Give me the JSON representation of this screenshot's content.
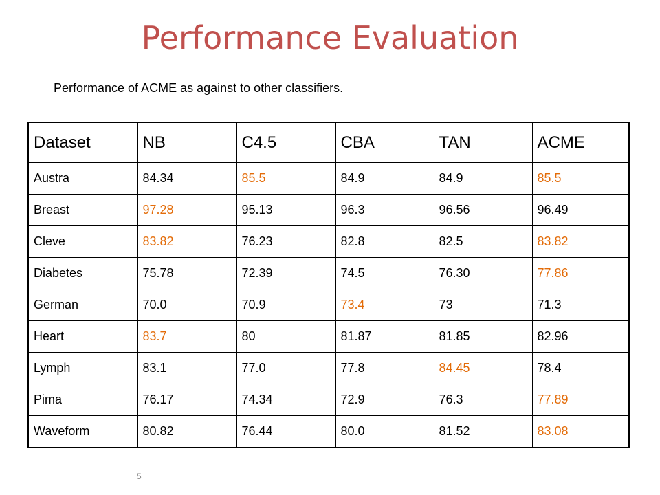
{
  "title": "Performance Evaluation",
  "subtitle": "Performance of ACME as against to other classifiers.",
  "colors": {
    "title": "#c0504d",
    "best_value": "#e36c09",
    "text": "#000000"
  },
  "table": {
    "headers": [
      "Dataset",
      "NB",
      "C4.5",
      "CBA",
      "TAN",
      "ACME"
    ],
    "rows": [
      {
        "cells": [
          "Austra",
          "84.34",
          "85.5",
          "84.9",
          "84.9",
          "85.5"
        ],
        "best": [
          2,
          5
        ]
      },
      {
        "cells": [
          "Breast",
          "97.28",
          "95.13",
          "96.3",
          "96.56",
          "96.49"
        ],
        "best": [
          1
        ]
      },
      {
        "cells": [
          "Cleve",
          "83.82",
          "76.23",
          "82.8",
          "82.5",
          "83.82"
        ],
        "best": [
          1,
          5
        ]
      },
      {
        "cells": [
          "Diabetes",
          "75.78",
          "72.39",
          "74.5",
          "76.30",
          "77.86"
        ],
        "best": [
          5
        ]
      },
      {
        "cells": [
          "German",
          "70.0",
          "70.9",
          "73.4",
          "73",
          "71.3"
        ],
        "best": [
          3
        ]
      },
      {
        "cells": [
          "Heart",
          "83.7",
          "80",
          "81.87",
          "81.85",
          "82.96"
        ],
        "best": [
          1
        ]
      },
      {
        "cells": [
          "Lymph",
          "83.1",
          "77.0",
          "77.8",
          "84.45",
          "78.4"
        ],
        "best": [
          4
        ]
      },
      {
        "cells": [
          "Pima",
          "76.17",
          "74.34",
          "72.9",
          "76.3",
          "77.89"
        ],
        "best": [
          5
        ]
      },
      {
        "cells": [
          "Waveform",
          "80.82",
          "76.44",
          "80.0",
          "81.52",
          "83.08"
        ],
        "best": [
          5
        ]
      }
    ]
  },
  "page_number": "5"
}
